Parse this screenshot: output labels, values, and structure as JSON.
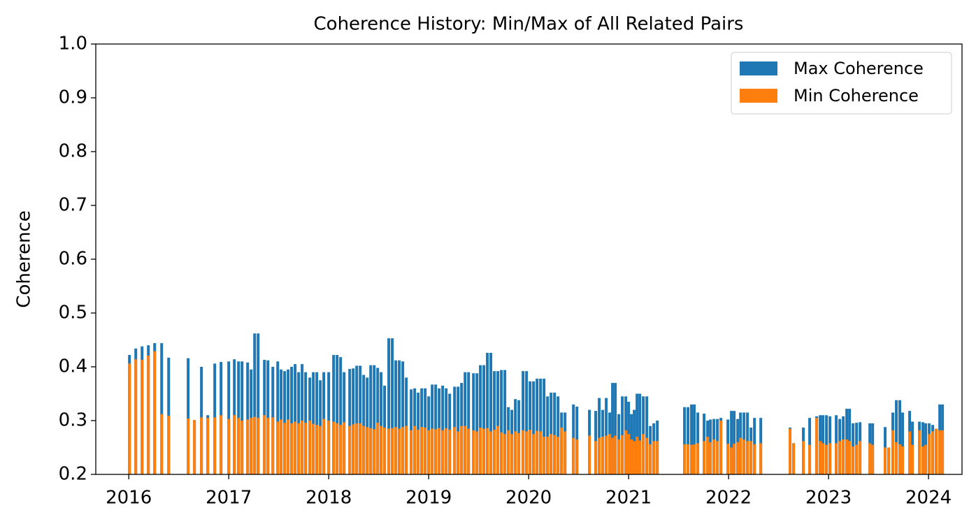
{
  "chart_data": {
    "type": "bar",
    "title": "Coherence History: Min/Max of All Related Pairs",
    "y_label": "Coherence",
    "xlim": [
      2015.67,
      2024.335
    ],
    "xticks": [
      2016,
      2017,
      2018,
      2019,
      2020,
      2021,
      2022,
      2023,
      2024
    ],
    "ylim": [
      0.2,
      1.0
    ],
    "yticks": [
      0.2,
      0.3,
      0.4,
      0.5,
      0.6,
      0.7,
      0.8,
      0.9,
      {
        "value": 1,
        "label": "1.0"
      }
    ],
    "legend": "upper right",
    "x": [
      2016.007,
      2016.07,
      2016.133,
      2016.196,
      2016.259,
      2016.329,
      2016.399,
      2016.594,
      2016.657,
      2016.727,
      2016.79,
      2016.86,
      2016.923,
      2017.0,
      2017.056,
      2017.098,
      2017.133,
      2017.189,
      2017.224,
      2017.259,
      2017.294,
      2017.357,
      2017.392,
      2017.441,
      2017.49,
      2017.524,
      2017.559,
      2017.594,
      2017.629,
      2017.664,
      2017.699,
      2017.734,
      2017.769,
      2017.811,
      2017.846,
      2017.881,
      2017.916,
      2017.951,
      2018.0,
      2018.049,
      2018.084,
      2018.119,
      2018.154,
      2018.21,
      2018.245,
      2018.28,
      2018.315,
      2018.35,
      2018.385,
      2018.42,
      2018.455,
      2018.49,
      2018.524,
      2018.559,
      2018.601,
      2018.636,
      2018.671,
      2018.706,
      2018.741,
      2018.776,
      2018.825,
      2018.86,
      2018.895,
      2018.93,
      2018.965,
      2019.0,
      2019.035,
      2019.07,
      2019.105,
      2019.14,
      2019.175,
      2019.21,
      2019.259,
      2019.294,
      2019.329,
      2019.364,
      2019.399,
      2019.448,
      2019.483,
      2019.517,
      2019.552,
      2019.587,
      2019.622,
      2019.657,
      2019.692,
      2019.727,
      2019.762,
      2019.797,
      2019.832,
      2019.867,
      2019.902,
      2019.944,
      2019.979,
      2020.014,
      2020.049,
      2020.084,
      2020.119,
      2020.154,
      2020.189,
      2020.224,
      2020.259,
      2020.294,
      2020.329,
      2020.364,
      2020.448,
      2020.483,
      2020.608,
      2020.671,
      2020.706,
      2020.741,
      2020.776,
      2020.811,
      2020.839,
      2020.867,
      2020.902,
      2020.937,
      2020.972,
      2021.0,
      2021.028,
      2021.056,
      2021.084,
      2021.112,
      2021.147,
      2021.182,
      2021.217,
      2021.252,
      2021.287,
      2021.559,
      2021.594,
      2021.629,
      2021.657,
      2021.692,
      2021.755,
      2021.79,
      2021.818,
      2021.853,
      2021.888,
      2021.923,
      2021.993,
      2022.028,
      2022.056,
      2022.091,
      2022.119,
      2022.154,
      2022.189,
      2022.224,
      2022.259,
      2022.322,
      2022.615,
      2022.65,
      2022.748,
      2022.811,
      2022.881,
      2022.916,
      2022.944,
      2022.979,
      2023.014,
      2023.077,
      2023.112,
      2023.147,
      2023.182,
      2023.21,
      2023.245,
      2023.28,
      2023.315,
      2023.413,
      2023.441,
      2023.566,
      2023.601,
      2023.643,
      2023.678,
      2023.713,
      2023.741,
      2023.811,
      2023.839,
      2023.909,
      2023.944,
      2023.972,
      2024.007,
      2024.042,
      2024.077,
      2024.112,
      2024.14
    ],
    "series": [
      {
        "name": "Max Coherence",
        "color": "#1f77b4",
        "values": [
          0.422,
          0.434,
          0.438,
          0.44,
          0.444,
          0.444,
          0.417,
          0.416,
          0.301,
          0.4,
          0.31,
          0.406,
          0.409,
          0.41,
          0.414,
          0.41,
          0.41,
          0.408,
          0.395,
          0.462,
          0.462,
          0.413,
          0.412,
          0.4,
          0.41,
          0.395,
          0.392,
          0.395,
          0.4,
          0.405,
          0.39,
          0.405,
          0.39,
          0.38,
          0.39,
          0.39,
          0.375,
          0.39,
          0.39,
          0.422,
          0.422,
          0.418,
          0.39,
          0.396,
          0.397,
          0.402,
          0.402,
          0.385,
          0.38,
          0.403,
          0.403,
          0.398,
          0.39,
          0.365,
          0.453,
          0.453,
          0.412,
          0.412,
          0.41,
          0.38,
          0.358,
          0.36,
          0.352,
          0.36,
          0.36,
          0.345,
          0.367,
          0.367,
          0.36,
          0.365,
          0.36,
          0.35,
          0.363,
          0.363,
          0.37,
          0.39,
          0.39,
          0.388,
          0.388,
          0.403,
          0.403,
          0.426,
          0.426,
          0.392,
          0.392,
          0.394,
          0.394,
          0.325,
          0.32,
          0.34,
          0.338,
          0.392,
          0.392,
          0.373,
          0.373,
          0.378,
          0.378,
          0.378,
          0.345,
          0.352,
          0.352,
          0.345,
          0.315,
          0.315,
          0.33,
          0.326,
          0.32,
          0.318,
          0.342,
          0.32,
          0.342,
          0.315,
          0.37,
          0.37,
          0.312,
          0.345,
          0.345,
          0.335,
          0.312,
          0.32,
          0.35,
          0.35,
          0.345,
          0.345,
          0.29,
          0.295,
          0.3,
          0.325,
          0.325,
          0.33,
          0.33,
          0.315,
          0.313,
          0.3,
          0.302,
          0.303,
          0.303,
          0.305,
          0.302,
          0.318,
          0.318,
          0.303,
          0.315,
          0.315,
          0.315,
          0.287,
          0.305,
          0.305,
          0.287,
          0.258,
          0.287,
          0.305,
          0.308,
          0.31,
          0.31,
          0.31,
          0.308,
          0.31,
          0.303,
          0.308,
          0.322,
          0.322,
          0.295,
          0.296,
          0.297,
          0.295,
          0.295,
          0.288,
          0.25,
          0.315,
          0.338,
          0.338,
          0.315,
          0.318,
          0.298,
          0.298,
          0.297,
          0.295,
          0.295,
          0.292,
          0.285,
          0.33,
          0.33
        ]
      },
      {
        "name": "Min Coherence",
        "color": "#ff7f0e",
        "values": [
          0.406,
          0.414,
          0.413,
          0.421,
          0.429,
          0.312,
          0.309,
          0.304,
          0.301,
          0.306,
          0.305,
          0.306,
          0.31,
          0.303,
          0.31,
          0.305,
          0.3,
          0.302,
          0.305,
          0.307,
          0.305,
          0.31,
          0.305,
          0.306,
          0.298,
          0.302,
          0.296,
          0.302,
          0.295,
          0.298,
          0.295,
          0.3,
          0.296,
          0.3,
          0.294,
          0.292,
          0.29,
          0.303,
          0.3,
          0.298,
          0.295,
          0.292,
          0.297,
          0.29,
          0.293,
          0.295,
          0.295,
          0.29,
          0.288,
          0.286,
          0.284,
          0.296,
          0.29,
          0.287,
          0.285,
          0.286,
          0.288,
          0.285,
          0.288,
          0.29,
          0.282,
          0.29,
          0.283,
          0.288,
          0.287,
          0.282,
          0.285,
          0.284,
          0.286,
          0.282,
          0.286,
          0.283,
          0.288,
          0.28,
          0.29,
          0.29,
          0.285,
          0.282,
          0.28,
          0.287,
          0.285,
          0.286,
          0.28,
          0.283,
          0.29,
          0.278,
          0.275,
          0.282,
          0.275,
          0.28,
          0.277,
          0.282,
          0.28,
          0.283,
          0.275,
          0.281,
          0.28,
          0.27,
          0.27,
          0.275,
          0.273,
          0.27,
          0.287,
          0.28,
          0.268,
          0.265,
          0.272,
          0.262,
          0.268,
          0.27,
          0.272,
          0.275,
          0.268,
          0.272,
          0.265,
          0.273,
          0.282,
          0.275,
          0.265,
          0.262,
          0.27,
          0.263,
          0.275,
          0.268,
          0.256,
          0.262,
          0.262,
          0.256,
          0.256,
          0.255,
          0.256,
          0.258,
          0.262,
          0.27,
          0.26,
          0.265,
          0.262,
          0.3,
          0.257,
          0.25,
          0.257,
          0.26,
          0.268,
          0.265,
          0.262,
          0.262,
          0.256,
          0.258,
          0.285,
          0.258,
          0.262,
          0.255,
          0.305,
          0.262,
          0.258,
          0.255,
          0.258,
          0.258,
          0.262,
          0.265,
          0.265,
          0.262,
          0.252,
          0.255,
          0.262,
          0.258,
          0.255,
          0.25,
          0.25,
          0.282,
          0.26,
          0.256,
          0.252,
          0.28,
          0.255,
          0.282,
          0.252,
          0.255,
          0.275,
          0.28,
          0.285,
          0.282,
          0.282
        ]
      }
    ]
  }
}
